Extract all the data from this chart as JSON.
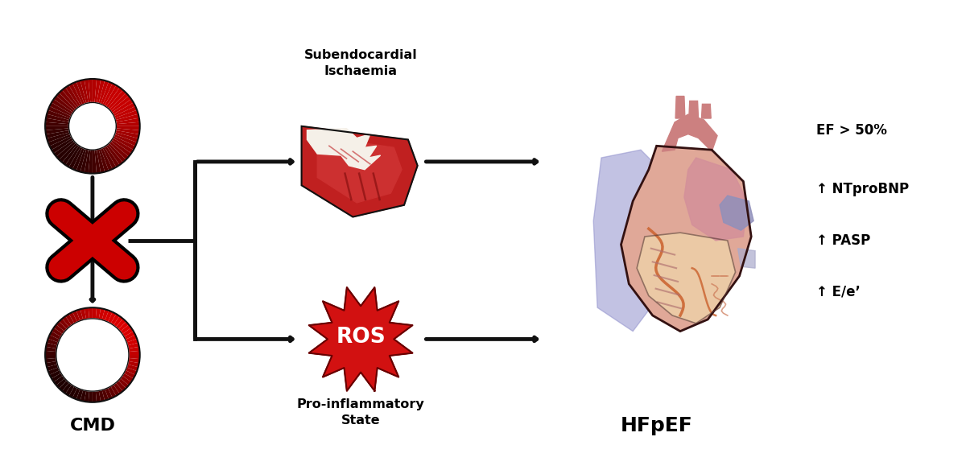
{
  "background_color": "#ffffff",
  "cmd_label": "CMD",
  "hfpef_label": "HFpEF",
  "subendocardial_label": "Subendocardial\nIschaemia",
  "ros_label": "Pro-inflammatory\nState",
  "ef_label": "EF > 50%",
  "ntprobnp_label": "↑ NTproBNP",
  "pasp_label": "↑ PASP",
  "eeprime_label": "↑ E/e’",
  "ros_text": "ROS",
  "arrow_color": "#111111",
  "red_color": "#cc0000",
  "annotation_fontsize": 12
}
